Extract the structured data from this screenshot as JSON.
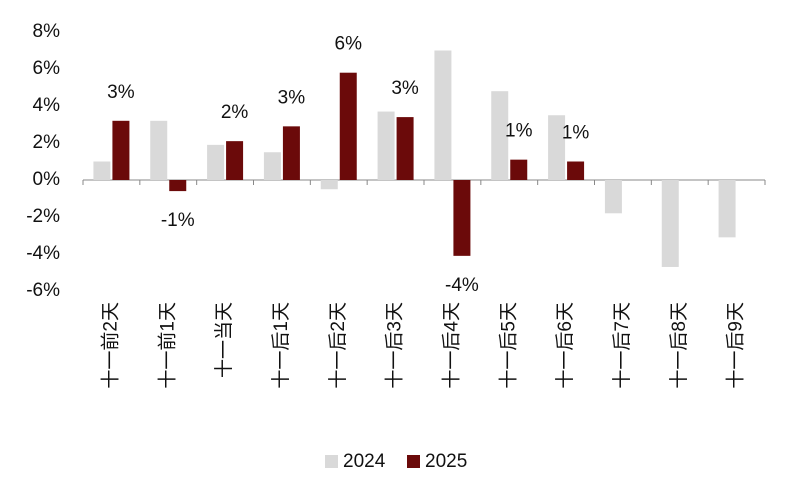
{
  "chart_data": {
    "type": "bar",
    "categories": [
      "十一前2天",
      "十一前1天",
      "十一当天",
      "十一后1天",
      "十一后2天",
      "十一后3天",
      "十一后4天",
      "十一后5天",
      "十一后6天",
      "十一后7天",
      "十一后8天",
      "十一后9天"
    ],
    "series": [
      {
        "name": "2024",
        "color": "#d9d9d9",
        "values": [
          1.0,
          3.2,
          1.9,
          1.5,
          -0.5,
          3.7,
          7.0,
          4.8,
          3.5,
          -1.8,
          -4.7,
          -3.1
        ]
      },
      {
        "name": "2025",
        "color": "#6b0a0a",
        "values": [
          3.2,
          -0.6,
          2.1,
          2.9,
          5.8,
          3.4,
          -4.1,
          1.1,
          1.0,
          null,
          null,
          null
        ],
        "value_labels": [
          "3%",
          "-1%",
          "2%",
          "3%",
          "6%",
          "3%",
          "-4%",
          "1%",
          "1%",
          null,
          null,
          null
        ]
      }
    ],
    "ylim": [
      -6,
      8
    ],
    "yticks": [
      {
        "value": -6,
        "label": "-6%"
      },
      {
        "value": -4,
        "label": "-4%"
      },
      {
        "value": -2,
        "label": "-2%"
      },
      {
        "value": 0,
        "label": "0%"
      },
      {
        "value": 2,
        "label": "2%"
      },
      {
        "value": 4,
        "label": "4%"
      },
      {
        "value": 6,
        "label": "6%"
      },
      {
        "value": 8,
        "label": "8%"
      }
    ],
    "grid": false,
    "legend": "bottom"
  }
}
